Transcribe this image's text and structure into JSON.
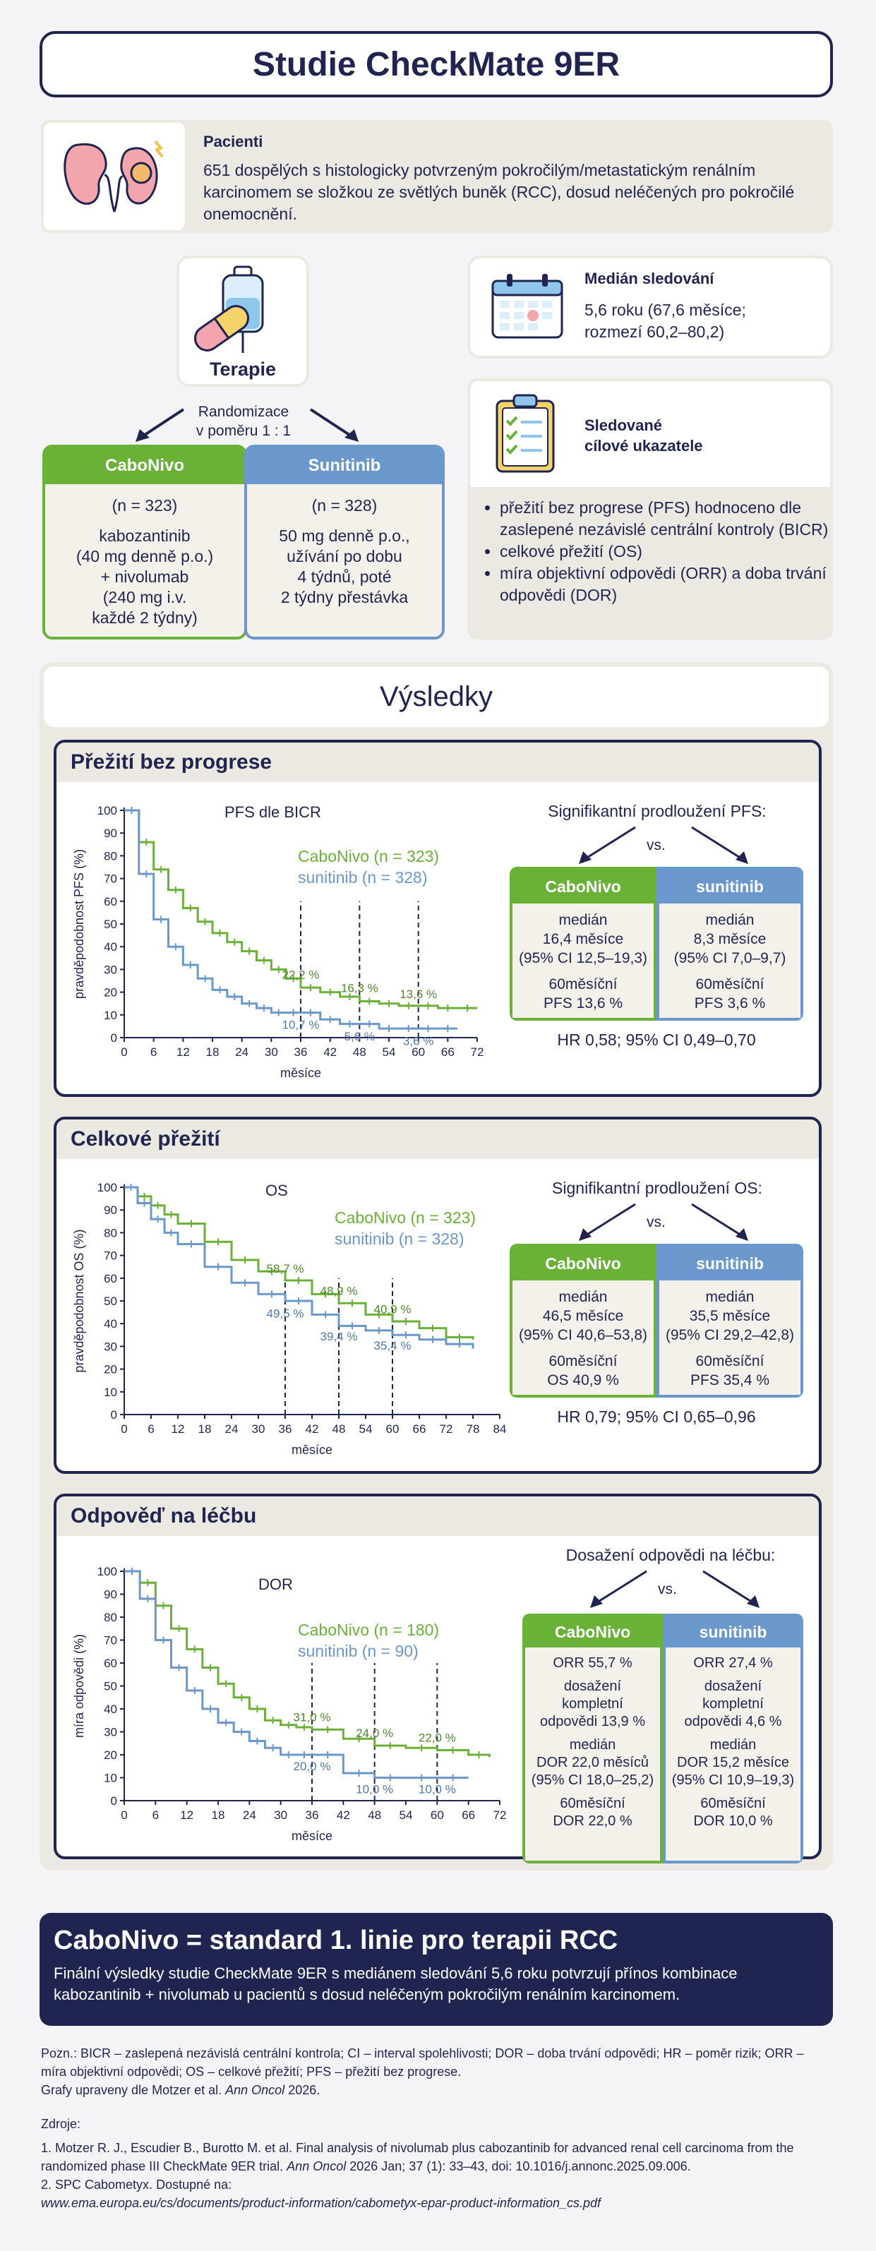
{
  "title": "Studie CheckMate 9ER",
  "patients": {
    "title": "Pacienti",
    "text": "651 dospělých s histologicky potvrzeným pokročilým/metastatickým renálním karcinomem se složkou ze světlých buněk (RCC), dosud neléčených pro pokročilé onemocnění."
  },
  "therapy": {
    "label": "Terapie",
    "randomization_line1": "Randomizace",
    "randomization_line2": "v poměru 1 : 1",
    "arms": [
      {
        "name": "CaboNivo",
        "n": "(n = 323)",
        "lines": [
          "kabozantinib",
          "(40 mg denně p.o.)",
          "+ nivolumab",
          "(240 mg i.v.",
          "každé 2 týdny)"
        ]
      },
      {
        "name": "Sunitinib",
        "n": "(n = 328)",
        "lines": [
          "50 mg denně p.o.,",
          "užívání po dobu",
          "4 týdnů, poté",
          "2 týdny přestávka"
        ]
      }
    ]
  },
  "followup": {
    "title": "Medián sledování",
    "line1": "5,6 roku (67,6 měsíce;",
    "line2": "rozmezí 60,2–80,2)"
  },
  "endpoints": {
    "title_line1": "Sledované",
    "title_line2": "cílové ukazatele",
    "items": [
      "přežití bez progrese (PFS) hodnoceno dle zaslepené nezávislé centrální kontroly (BICR)",
      "celkové přežití (OS)",
      "míra objektivní odpovědi (ORR) a doba trvání odpovědi (DOR)"
    ]
  },
  "results_title": "Výsledky",
  "panels": [
    {
      "heading": "Přežití bez progrese",
      "chart_title": "PFS dle BICR",
      "legend_green": "CaboNivo (n = 323)",
      "legend_blue": "sunitinib (n = 328)",
      "significance": "Signifikantní prodloužení PFS:",
      "vs": "vs.",
      "cabo_head": "CaboNivo",
      "suni_head": "sunitinib",
      "cabo_lines": [
        "medián",
        "16,4 měsíce",
        "(95% CI 12,5–19,3)",
        "",
        "60měsíční",
        "PFS 13,6 %"
      ],
      "suni_lines": [
        "medián",
        "8,3 měsíce",
        "(95% CI 7,0–9,7)",
        "",
        "60měsíční",
        "PFS 3,6 %"
      ],
      "hr": "HR 0,58; 95% CI 0,49–0,70"
    },
    {
      "heading": "Celkové přežití",
      "chart_title": "OS",
      "legend_green": "CaboNivo (n = 323)",
      "legend_blue": "sunitinib (n = 328)",
      "significance": "Signifikantní prodloužení OS:",
      "vs": "vs.",
      "cabo_head": "CaboNivo",
      "suni_head": "sunitinib",
      "cabo_lines": [
        "medián",
        "46,5 měsíce",
        "(95% CI 40,6–53,8)",
        "",
        "60měsíční",
        "OS 40,9 %"
      ],
      "suni_lines": [
        "medián",
        "35,5 měsíce",
        "(95% CI 29,2–42,8)",
        "",
        "60měsíční",
        "PFS 35,4 %"
      ],
      "hr": "HR 0,79; 95% CI 0,65–0,96"
    },
    {
      "heading": "Odpověď na léčbu",
      "chart_title": "DOR",
      "legend_green": "CaboNivo (n = 180)",
      "legend_blue": "sunitinib (n = 90)",
      "significance": "Dosažení odpovědi na léčbu:",
      "vs": "vs.",
      "cabo_head": "CaboNivo",
      "suni_head": "sunitinib",
      "cabo_lines": [
        "ORR 55,7 %",
        "",
        "dosažení",
        "kompletní",
        "odpovědi 13,9 %",
        "",
        "medián",
        "DOR 22,0 měsíců",
        "(95% CI 18,0–25,2)",
        "",
        "60měsíční",
        "DOR 22,0 %"
      ],
      "suni_lines": [
        "ORR 27,4 %",
        "",
        "dosažení",
        "kompletní",
        "odpovědi 4,6 %",
        "",
        "medián",
        "DOR 15,2 měsíce",
        "(95% CI 10,9–19,3)",
        "",
        "60měsíční",
        "DOR 10,0 %"
      ],
      "hr": ""
    }
  ],
  "chart_data": [
    {
      "type": "line",
      "title": "PFS dle BICR",
      "xlabel": "měsíce",
      "ylabel": "pravděpodobnost PFS (%)",
      "xlim": [
        0,
        72
      ],
      "xticks": [
        0,
        6,
        12,
        18,
        24,
        30,
        36,
        42,
        48,
        54,
        60,
        66,
        72
      ],
      "ylim": [
        0,
        100
      ],
      "yticks": [
        0,
        10,
        20,
        30,
        40,
        50,
        60,
        70,
        80,
        90,
        100
      ],
      "markers": [
        36,
        48,
        60
      ],
      "series": [
        {
          "name": "CaboNivo (n = 323)",
          "color": "#6ab137",
          "x": [
            0,
            3,
            6,
            9,
            12,
            15,
            18,
            21,
            24,
            27,
            30,
            33,
            36,
            40,
            44,
            48,
            52,
            56,
            60,
            64,
            68,
            72
          ],
          "y": [
            100,
            86,
            74,
            65,
            57,
            51,
            46,
            42,
            38,
            34,
            30,
            26,
            22,
            20,
            18,
            16,
            15,
            14,
            14,
            13,
            13,
            13
          ]
        },
        {
          "name": "sunitinib (n = 328)",
          "color": "#6a98cc",
          "x": [
            0,
            3,
            6,
            9,
            12,
            15,
            18,
            21,
            24,
            27,
            30,
            33,
            36,
            40,
            44,
            48,
            52,
            56,
            60,
            64,
            68
          ],
          "y": [
            100,
            72,
            52,
            40,
            32,
            26,
            21,
            18,
            15,
            13,
            11,
            11,
            11,
            8,
            6,
            6,
            4,
            4,
            4,
            4,
            4
          ]
        }
      ],
      "annotations": [
        {
          "x": 36,
          "y": 22.2,
          "text": "22,2 %",
          "series": "green"
        },
        {
          "x": 48,
          "y": 16.3,
          "text": "16,3 %",
          "series": "green"
        },
        {
          "x": 60,
          "y": 13.6,
          "text": "13,6 %",
          "series": "green"
        },
        {
          "x": 36,
          "y": 10.7,
          "text": "10,7 %",
          "series": "blue"
        },
        {
          "x": 48,
          "y": 5.6,
          "text": "5,6 %",
          "series": "blue"
        },
        {
          "x": 60,
          "y": 3.6,
          "text": "3,6 %",
          "series": "blue"
        }
      ]
    },
    {
      "type": "line",
      "title": "OS",
      "xlabel": "měsíce",
      "ylabel": "pravděpodobnost OS (%)",
      "xlim": [
        0,
        84
      ],
      "xticks": [
        0,
        6,
        12,
        18,
        24,
        30,
        36,
        42,
        48,
        54,
        60,
        66,
        72,
        78,
        84
      ],
      "ylim": [
        0,
        100
      ],
      "yticks": [
        0,
        10,
        20,
        30,
        40,
        50,
        60,
        70,
        80,
        90,
        100
      ],
      "markers": [
        36,
        48,
        60
      ],
      "series": [
        {
          "name": "CaboNivo (n = 323)",
          "color": "#6ab137",
          "x": [
            0,
            3,
            6,
            9,
            12,
            18,
            24,
            30,
            36,
            42,
            48,
            54,
            60,
            66,
            72,
            78
          ],
          "y": [
            100,
            96,
            92,
            88,
            84,
            76,
            68,
            63,
            59,
            53,
            49,
            44,
            41,
            38,
            34,
            33
          ]
        },
        {
          "name": "sunitinib (n = 328)",
          "color": "#6a98cc",
          "x": [
            0,
            3,
            6,
            9,
            12,
            18,
            24,
            30,
            36,
            42,
            48,
            54,
            60,
            66,
            72,
            78
          ],
          "y": [
            100,
            93,
            86,
            80,
            75,
            65,
            58,
            53,
            50,
            44,
            39,
            37,
            35,
            33,
            31,
            29
          ]
        }
      ],
      "annotations": [
        {
          "x": 36,
          "y": 58.7,
          "text": "58,7 %",
          "series": "green"
        },
        {
          "x": 48,
          "y": 48.9,
          "text": "48,9 %",
          "series": "green"
        },
        {
          "x": 60,
          "y": 40.9,
          "text": "40,9 %",
          "series": "green"
        },
        {
          "x": 36,
          "y": 49.5,
          "text": "49,5 %",
          "series": "blue"
        },
        {
          "x": 48,
          "y": 39.4,
          "text": "39,4 %",
          "series": "blue"
        },
        {
          "x": 60,
          "y": 35.4,
          "text": "35,4 %",
          "series": "blue"
        }
      ]
    },
    {
      "type": "line",
      "title": "DOR",
      "xlabel": "měsíce",
      "ylabel": "míra odpovědi (%)",
      "xlim": [
        0,
        72
      ],
      "xticks": [
        0,
        6,
        12,
        18,
        24,
        30,
        36,
        42,
        48,
        54,
        60,
        66,
        72
      ],
      "ylim": [
        0,
        100
      ],
      "yticks": [
        0,
        10,
        20,
        30,
        40,
        50,
        60,
        70,
        80,
        90,
        100
      ],
      "markers": [
        36,
        48,
        60
      ],
      "series": [
        {
          "name": "CaboNivo (n = 180)",
          "color": "#6ab137",
          "x": [
            0,
            3,
            6,
            9,
            12,
            15,
            18,
            21,
            24,
            27,
            30,
            33,
            36,
            42,
            48,
            54,
            60,
            66,
            70
          ],
          "y": [
            100,
            95,
            85,
            75,
            66,
            58,
            51,
            45,
            40,
            35,
            33,
            32,
            31,
            27,
            24,
            23,
            22,
            20,
            19
          ]
        },
        {
          "name": "sunitinib (n = 90)",
          "color": "#6a98cc",
          "x": [
            0,
            3,
            6,
            9,
            12,
            15,
            18,
            21,
            24,
            27,
            30,
            33,
            36,
            42,
            48,
            54,
            60,
            66
          ],
          "y": [
            100,
            88,
            70,
            58,
            48,
            40,
            34,
            30,
            26,
            23,
            20,
            20,
            20,
            12,
            10,
            10,
            10,
            10
          ]
        }
      ],
      "annotations": [
        {
          "x": 36,
          "y": 31.0,
          "text": "31,0 %",
          "series": "green"
        },
        {
          "x": 48,
          "y": 24.0,
          "text": "24,0 %",
          "series": "green"
        },
        {
          "x": 60,
          "y": 22.0,
          "text": "22,0 %",
          "series": "green"
        },
        {
          "x": 36,
          "y": 20.0,
          "text": "20,0 %",
          "series": "blue"
        },
        {
          "x": 48,
          "y": 10.0,
          "text": "10,0 %",
          "series": "blue"
        },
        {
          "x": 60,
          "y": 10.0,
          "text": "10,0 %",
          "series": "blue"
        }
      ]
    }
  ],
  "conclusion": {
    "title": "CaboNivo = standard 1. linie pro terapii RCC",
    "text": "Finální výsledky studie CheckMate 9ER s mediánem sledování 5,6 roku potvrzují přínos kombinace kabozantinib + nivolumab u pacientů s dosud neléčeným pokročilým renálním karcinomem."
  },
  "notes": {
    "abbr": "Pozn.: BICR – zaslepená nezávislá centrální kontrola; CI – interval spolehlivosti; DOR – doba trvání odpovědi; HR – poměr rizik; ORR – míra objektivní odpovědi; OS – celkové přežití; PFS – přežití bez progrese.",
    "adapted_prefix": "Grafy upraveny dle Motzer et al. ",
    "adapted_journal": "Ann Oncol",
    "adapted_suffix": " 2026.",
    "sources_title": "Zdroje:",
    "ref1_prefix": "1. Motzer R. J., Escudier B., Burotto M. et al. Final analysis of nivolumab plus cabozantinib for advanced renal cell carcinoma from the randomized phase III CheckMate 9ER trial. ",
    "ref1_journal": "Ann Oncol",
    "ref1_suffix": " 2026 Jan; 37 (1): 33–43, doi: 10.1016/j.annonc.2025.09.006.",
    "ref2": "2. SPC Cabometyx. Dostupné na:",
    "ref2_url": "www.ema.europa.eu/cs/documents/product-information/cabometyx-epar-product-information_cs.pdf"
  }
}
